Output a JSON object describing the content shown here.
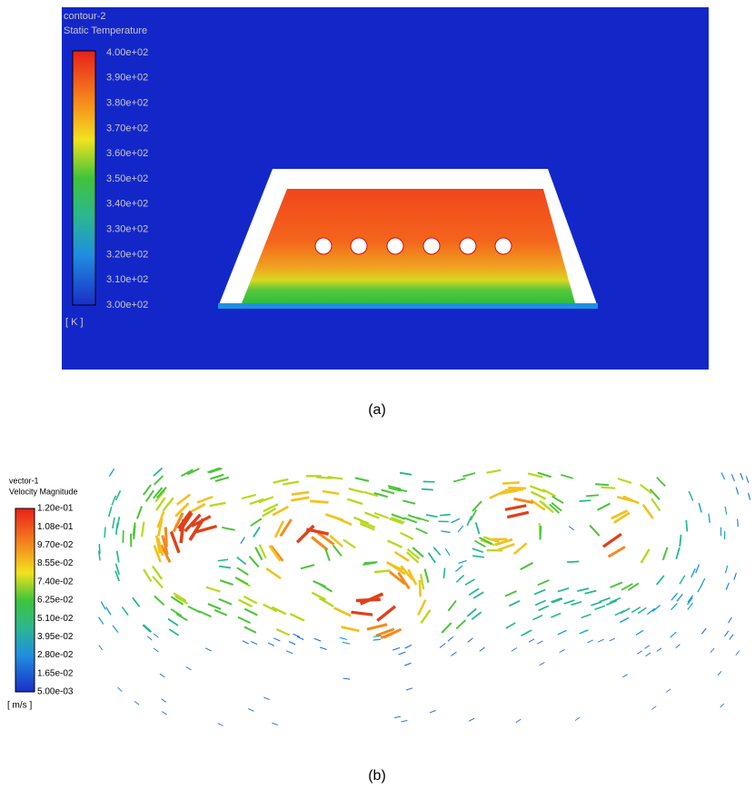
{
  "panel_a": {
    "title": "contour-2",
    "subtitle": "Static Temperature",
    "legend_labels": [
      "4.00e+02",
      "3.90e+02",
      "3.80e+02",
      "3.70e+02",
      "3.60e+02",
      "3.50e+02",
      "3.40e+02",
      "3.30e+02",
      "3.20e+02",
      "3.10e+02",
      "3.00e+02"
    ],
    "unit": "[ K ]",
    "caption": "(a)"
  },
  "panel_b": {
    "title": "vector-1",
    "subtitle": "Velocity Magnitude",
    "legend_labels": [
      "1.20e-01",
      "1.08e-01",
      "9.70e-02",
      "8.55e-02",
      "7.40e-02",
      "6.25e-02",
      "5.10e-02",
      "3.95e-02",
      "2.80e-02",
      "1.65e-02",
      "5.00e-03"
    ],
    "unit": "[ m/s ]",
    "caption": "(b)"
  }
}
